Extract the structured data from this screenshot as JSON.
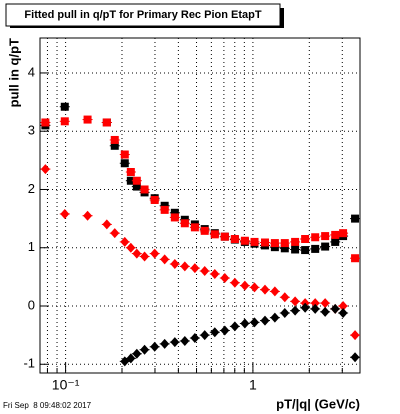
{
  "chart_data": {
    "type": "scatter",
    "title": "Fitted pull in q/pT for Primary Rec Pion EtapT",
    "ylabel": "pull in q/pT",
    "xlabel": "pT/|q| (GeV/c)",
    "footer": "Fri Sep  8 09:48:02 2017",
    "xlog": true,
    "grid": true,
    "xlim": [
      0.073,
      3.73
    ],
    "ylim": [
      -1.15,
      4.6
    ],
    "xticks": [
      {
        "value": 0.1,
        "label": "10⁻¹"
      },
      1
    ],
    "xminorticks": [
      0.08,
      0.09,
      0.2,
      0.3,
      0.4,
      0.5,
      0.6,
      0.7,
      0.8,
      0.9,
      2,
      3
    ],
    "yticks": [
      -1,
      0,
      1,
      2,
      3,
      4
    ],
    "series": [
      {
        "color": "#000000",
        "marker": "square",
        "x": [
          0.078,
          0.099,
          0.166,
          0.183,
          0.207,
          0.223,
          0.24,
          0.264,
          0.299,
          0.338,
          0.383,
          0.433,
          0.49,
          0.553,
          0.626,
          0.708,
          0.801,
          0.906,
          1.02,
          1.16,
          1.31,
          1.48,
          1.68,
          1.9,
          2.15,
          2.43,
          2.75,
          3.03,
          3.51
        ],
        "values": [
          3.1,
          3.42,
          3.15,
          2.75,
          2.45,
          2.15,
          2.05,
          1.95,
          1.85,
          1.72,
          1.6,
          1.48,
          1.4,
          1.32,
          1.25,
          1.19,
          1.14,
          1.1,
          1.07,
          1.04,
          1.01,
          0.99,
          0.97,
          0.96,
          0.98,
          1.02,
          1.1,
          1.2,
          1.5
        ]
      },
      {
        "color": "#ff0000",
        "marker": "square",
        "x": [
          0.078,
          0.099,
          0.131,
          0.166,
          0.183,
          0.207,
          0.223,
          0.24,
          0.264,
          0.299,
          0.338,
          0.383,
          0.433,
          0.49,
          0.553,
          0.626,
          0.708,
          0.801,
          0.906,
          1.02,
          1.16,
          1.31,
          1.48,
          1.68,
          1.9,
          2.15,
          2.43,
          2.75,
          3.03,
          3.51
        ],
        "values": [
          3.15,
          3.17,
          3.2,
          3.15,
          2.85,
          2.6,
          2.3,
          2.15,
          2.0,
          1.82,
          1.65,
          1.52,
          1.42,
          1.35,
          1.29,
          1.23,
          1.19,
          1.15,
          1.12,
          1.1,
          1.09,
          1.08,
          1.08,
          1.1,
          1.15,
          1.18,
          1.2,
          1.22,
          1.25,
          0.82
        ]
      },
      {
        "color": "#ff0000",
        "marker": "diamond",
        "x": [
          0.078,
          0.099,
          0.131,
          0.166,
          0.183,
          0.207,
          0.223,
          0.24,
          0.264,
          0.299,
          0.338,
          0.383,
          0.433,
          0.49,
          0.553,
          0.626,
          0.708,
          0.801,
          0.906,
          1.02,
          1.16,
          1.31,
          1.48,
          1.68,
          1.9,
          2.15,
          2.43,
          2.75,
          3.03,
          3.51
        ],
        "values": [
          2.35,
          1.58,
          1.55,
          1.4,
          1.25,
          1.1,
          1.0,
          0.9,
          0.85,
          0.9,
          0.8,
          0.72,
          0.68,
          0.65,
          0.6,
          0.55,
          0.48,
          0.4,
          0.35,
          0.32,
          0.28,
          0.25,
          0.15,
          0.08,
          0.05,
          0.05,
          0.05,
          -0.05,
          0.0,
          -0.5
        ]
      },
      {
        "color": "#000000",
        "marker": "diamond",
        "x": [
          0.207,
          0.223,
          0.24,
          0.264,
          0.299,
          0.338,
          0.383,
          0.433,
          0.49,
          0.553,
          0.626,
          0.708,
          0.801,
          0.906,
          1.02,
          1.16,
          1.31,
          1.48,
          1.68,
          1.9,
          2.15,
          2.43,
          2.75,
          3.03,
          3.51
        ],
        "values": [
          -0.95,
          -0.9,
          -0.82,
          -0.75,
          -0.7,
          -0.65,
          -0.62,
          -0.6,
          -0.55,
          -0.5,
          -0.45,
          -0.42,
          -0.35,
          -0.3,
          -0.28,
          -0.25,
          -0.2,
          -0.12,
          -0.08,
          -0.03,
          -0.05,
          -0.1,
          -0.05,
          -0.12,
          -0.88
        ]
      }
    ]
  }
}
